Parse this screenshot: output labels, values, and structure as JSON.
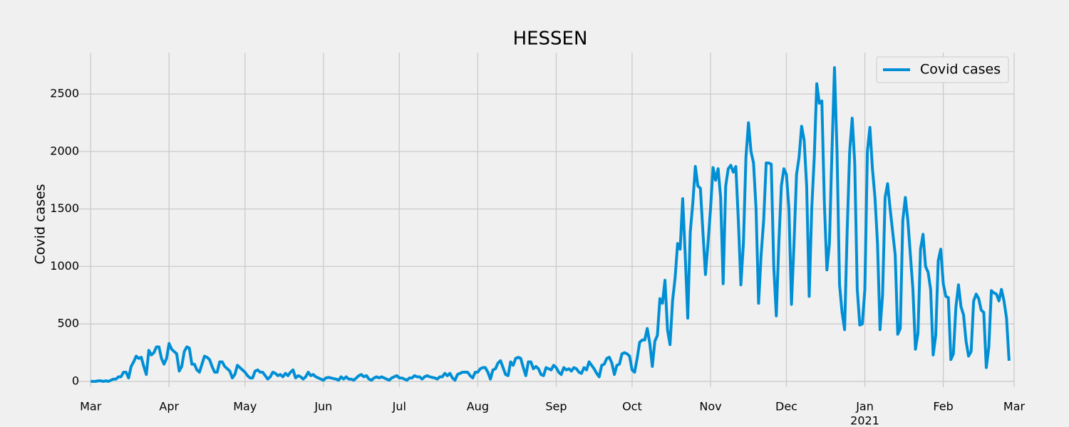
{
  "chart_data": {
    "type": "line",
    "title": "HESSEN",
    "y_label": "Covid cases",
    "series": [
      {
        "name": "Covid cases",
        "color": "#008fd5",
        "values": [
          0,
          0,
          0,
          5,
          5,
          0,
          5,
          0,
          10,
          20,
          20,
          40,
          40,
          80,
          80,
          30,
          130,
          170,
          220,
          200,
          210,
          130,
          60,
          270,
          230,
          250,
          300,
          300,
          200,
          150,
          200,
          330,
          280,
          260,
          240,
          90,
          130,
          260,
          300,
          290,
          150,
          150,
          100,
          80,
          150,
          220,
          210,
          190,
          130,
          80,
          80,
          170,
          170,
          130,
          110,
          90,
          30,
          60,
          140,
          120,
          100,
          80,
          50,
          30,
          30,
          90,
          100,
          80,
          80,
          50,
          20,
          40,
          80,
          70,
          50,
          60,
          40,
          70,
          50,
          80,
          100,
          30,
          50,
          40,
          20,
          40,
          80,
          50,
          60,
          40,
          30,
          20,
          10,
          30,
          35,
          30,
          25,
          20,
          10,
          40,
          20,
          40,
          20,
          20,
          10,
          30,
          50,
          60,
          40,
          50,
          20,
          10,
          30,
          40,
          30,
          40,
          30,
          20,
          10,
          30,
          40,
          50,
          30,
          30,
          20,
          10,
          30,
          30,
          50,
          40,
          40,
          20,
          40,
          50,
          40,
          35,
          30,
          20,
          40,
          40,
          70,
          50,
          70,
          30,
          10,
          60,
          70,
          80,
          80,
          80,
          50,
          30,
          80,
          80,
          110,
          120,
          120,
          80,
          20,
          100,
          110,
          160,
          180,
          120,
          60,
          50,
          170,
          140,
          200,
          210,
          200,
          120,
          50,
          170,
          170,
          110,
          130,
          110,
          60,
          50,
          120,
          110,
          100,
          140,
          120,
          80,
          60,
          120,
          100,
          110,
          90,
          120,
          110,
          80,
          70,
          120,
          100,
          170,
          140,
          110,
          70,
          40,
          140,
          150,
          200,
          210,
          160,
          60,
          140,
          150,
          240,
          250,
          240,
          220,
          100,
          80,
          200,
          340,
          360,
          360,
          460,
          330,
          130,
          350,
          400,
          720,
          680,
          880,
          450,
          320,
          700,
          900,
          1200,
          1150,
          1590,
          1100,
          550,
          1300,
          1550,
          1870,
          1700,
          1680,
          1300,
          930,
          1200,
          1500,
          1860,
          1750,
          1850,
          1600,
          850,
          1700,
          1850,
          1880,
          1820,
          1870,
          1400,
          840,
          1200,
          1950,
          2250,
          2000,
          1900,
          1500,
          680,
          1100,
          1400,
          1900,
          1900,
          1890,
          1000,
          570,
          1200,
          1700,
          1850,
          1800,
          1500,
          670,
          1200,
          1800,
          1950,
          2220,
          2100,
          1700,
          740,
          1500,
          1950,
          2590,
          2420,
          2440,
          1550,
          970,
          1200,
          2000,
          2730,
          2000,
          840,
          600,
          450,
          1300,
          2000,
          2290,
          1900,
          800,
          490,
          500,
          800,
          2000,
          2210,
          1850,
          1600,
          1200,
          450,
          750,
          1600,
          1720,
          1500,
          1300,
          1100,
          410,
          460,
          1400,
          1600,
          1400,
          1100,
          800,
          280,
          420,
          1150,
          1280,
          1000,
          950,
          800,
          230,
          400,
          1050,
          1150,
          850,
          740,
          730,
          190,
          240,
          650,
          840,
          650,
          580,
          350,
          220,
          260,
          700,
          760,
          720,
          620,
          600,
          120,
          300,
          790,
          770,
          760,
          700,
          800,
          700,
          550,
          180
        ]
      }
    ],
    "xlim": [
      -4,
      365
    ],
    "ylim": [
      -50,
      2860
    ],
    "xticks": [
      {
        "value": 0,
        "label": "Mar"
      },
      {
        "value": 31,
        "label": "Apr"
      },
      {
        "value": 61,
        "label": "May"
      },
      {
        "value": 92,
        "label": "Jun"
      },
      {
        "value": 122,
        "label": "Jul"
      },
      {
        "value": 153,
        "label": "Aug"
      },
      {
        "value": 184,
        "label": "Sep"
      },
      {
        "value": 214,
        "label": "Oct"
      },
      {
        "value": 245,
        "label": "Nov"
      },
      {
        "value": 275,
        "label": "Dec"
      },
      {
        "value": 306,
        "label": "Jan"
      },
      {
        "value": 337,
        "label": "Feb"
      },
      {
        "value": 365,
        "label": "Mar"
      }
    ],
    "xtick_sublabel": {
      "tick": 10,
      "label": "2021"
    },
    "yticks": [
      0,
      500,
      1000,
      1500,
      2000,
      2500
    ],
    "grid": true,
    "legend": "upper right"
  }
}
